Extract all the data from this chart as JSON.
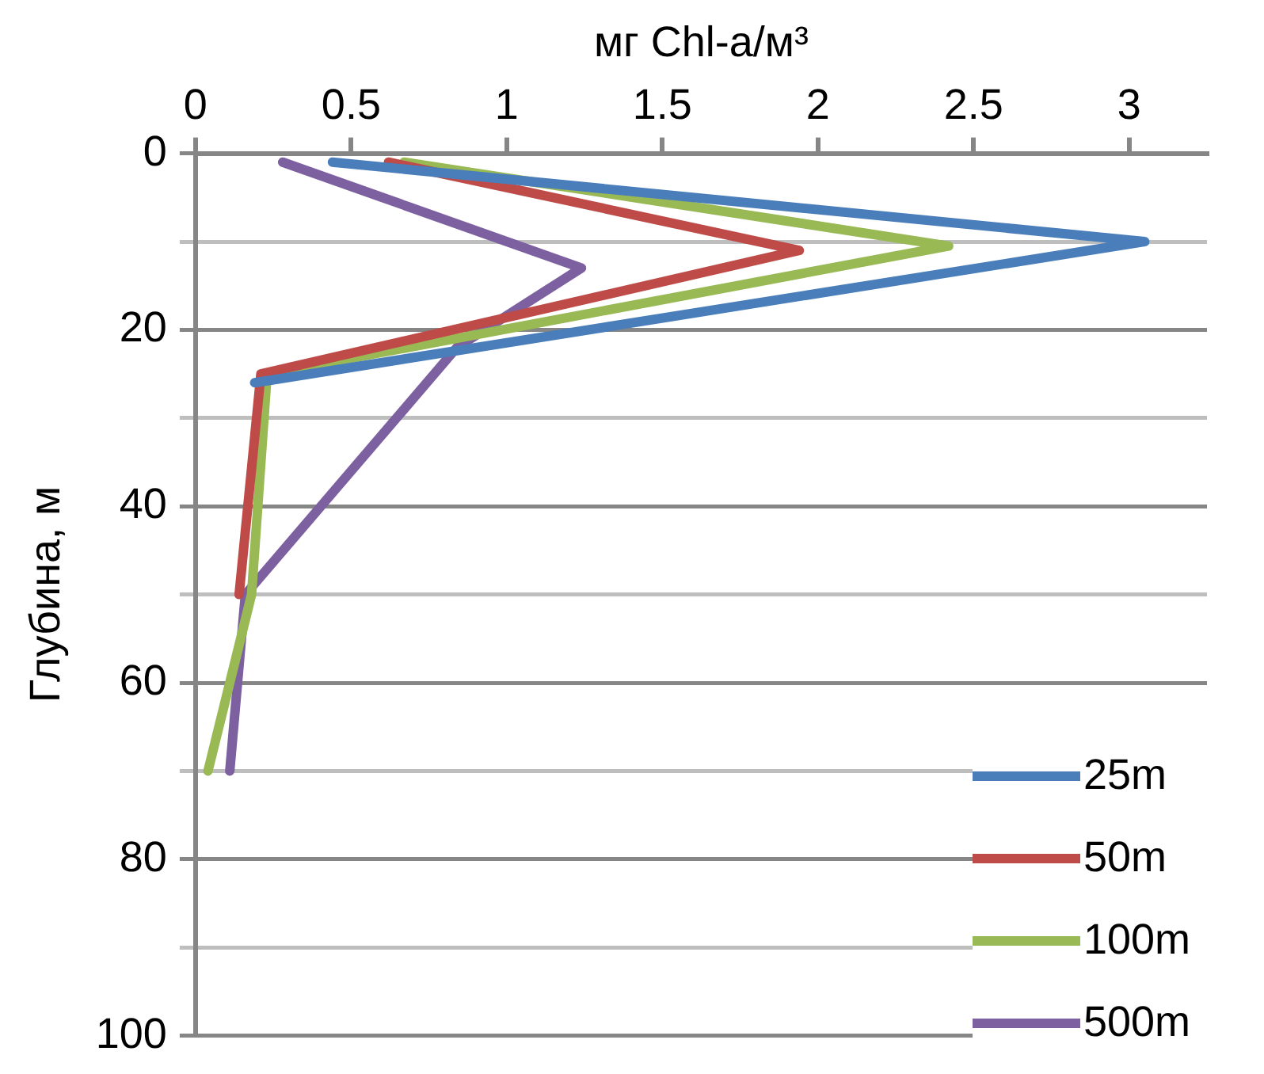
{
  "chart_data": {
    "type": "line",
    "xlabel": "мг Chl-a/м³",
    "ylabel": "Глубина, м",
    "xlim": [
      0,
      3.25
    ],
    "xticks": [
      0,
      0.5,
      1,
      1.5,
      2,
      2.5,
      3
    ],
    "ylim": [
      100,
      0
    ],
    "yticks": [
      0,
      {
        "value": 10,
        "label": null
      },
      20,
      {
        "value": 30,
        "label": null
      },
      40,
      {
        "value": 50,
        "label": null
      },
      60,
      {
        "value": 70,
        "label": null
      },
      80,
      {
        "value": 90,
        "label": null
      },
      100
    ],
    "grid": "y",
    "legend": "bottom right",
    "marker": "none",
    "line_style": "solid",
    "series": [
      {
        "name": "25m",
        "color": "#4a7ebb",
        "x": [
          0.44,
          3.05,
          0.19
        ],
        "values": [
          1,
          10,
          26
        ]
      },
      {
        "name": "50m",
        "color": "#be4b48",
        "x": [
          0.62,
          1.94,
          0.21,
          0.14
        ],
        "values": [
          1,
          11,
          25,
          50
        ]
      },
      {
        "name": "100m",
        "color": "#98b954",
        "x": [
          0.67,
          2.42,
          0.23,
          0.18,
          0.04
        ],
        "values": [
          1,
          10.5,
          25,
          50,
          70
        ]
      },
      {
        "name": "500m",
        "color": "#7d60a0",
        "x": [
          0.28,
          1.24,
          0.84,
          0.16,
          0.11
        ],
        "values": [
          1,
          13,
          22,
          50,
          70
        ]
      }
    ]
  }
}
